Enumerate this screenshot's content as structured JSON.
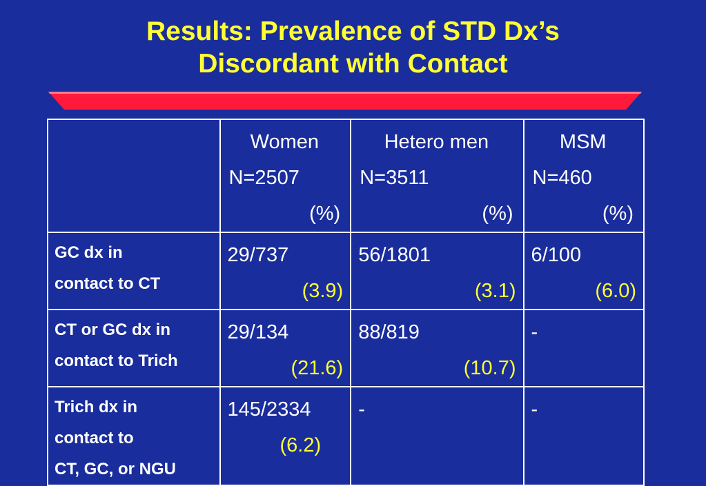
{
  "title": {
    "line1": "Results: Prevalence of STD Dx’s",
    "line2": "Discordant with Contact"
  },
  "colors": {
    "background": "#1a2d9c",
    "title": "#ffff33",
    "rule": "#ff1a3c",
    "text": "#ffffff",
    "highlight": "#ffff33"
  },
  "table": {
    "columns": [
      {
        "name": "Women",
        "n": "N=2507",
        "unit": "(%)"
      },
      {
        "name": "Hetero men",
        "n": "N=3511",
        "unit": "(%)"
      },
      {
        "name": "MSM",
        "n": "N=460",
        "unit": "(%)"
      }
    ],
    "rows": [
      {
        "label": [
          "GC dx in",
          "contact to CT"
        ],
        "cells": [
          {
            "frac": "29/737",
            "pct": "(3.9)"
          },
          {
            "frac": "56/1801",
            "pct": "(3.1)"
          },
          {
            "frac": "6/100",
            "pct": "(6.0)"
          }
        ]
      },
      {
        "label": [
          "CT or GC dx in",
          "contact to Trich"
        ],
        "cells": [
          {
            "frac": "29/134",
            "pct": "(21.6)"
          },
          {
            "frac": "88/819",
            "pct": "(10.7)"
          },
          {
            "frac": "-",
            "pct": ""
          }
        ]
      },
      {
        "label": [
          "Trich dx in",
          "contact to",
          "CT, GC, or NGU"
        ],
        "cells": [
          {
            "frac": "145/2334",
            "pct": "(6.2)"
          },
          {
            "frac": "-",
            "pct": ""
          },
          {
            "frac": "-",
            "pct": ""
          }
        ]
      }
    ]
  }
}
